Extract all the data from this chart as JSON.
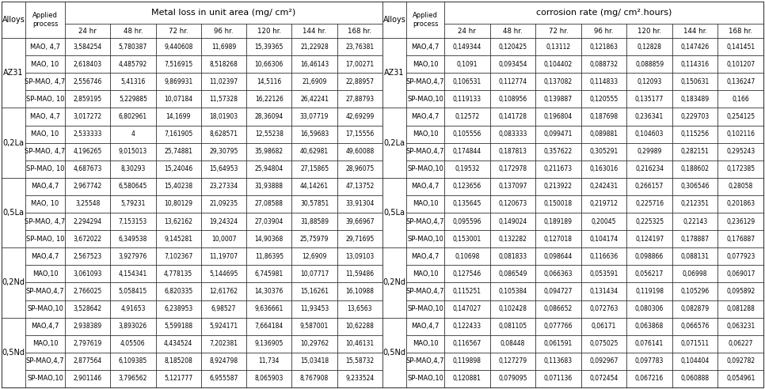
{
  "title_left": "Metal loss in unit area (mg/ cm²)",
  "title_right": "corrosion rate (mg/ cm².hours)",
  "col_headers": [
    "24 hr",
    "48 hr.",
    "72 hr.",
    "96 hr.",
    "120 hr.",
    "144 hr.",
    "168 hr."
  ],
  "alloys": [
    "AZ31",
    "0,2La",
    "0,5La",
    "0,2Nd",
    "0,5Nd"
  ],
  "processes_left": [
    "MAO, 4,7",
    "MAO, 10",
    "SP-MAO, 4,7",
    "SP-MAO, 10",
    "MAO, 4,7",
    "MAO, 10",
    "SP-MAO, 4,7",
    "SP-MAO, 10",
    "MAO,4,7",
    "MAO, 10",
    "SP-MAO, 4,7",
    "SP-MAO, 10",
    "MAO,4,7",
    "MAO,10",
    "SP-MAO,4,7",
    "SP-MAO,10",
    "MAO,4,7",
    "MAO,10",
    "SP-MAO,4,7",
    "SP-MAO,10"
  ],
  "processes_right": [
    "MAO,4,7",
    "MAO,10",
    "SP-MAO,4,7",
    "SP-MAO,10",
    "MAO,4,7",
    "MAO,10",
    "SP-MAO,4,7",
    "SP-MAO,10",
    "MAO,4,7",
    "MAO,10",
    "SP-MAO,4,7",
    "SP-MAO,10",
    "MAO,4,7",
    "MAO,10",
    "SP-MAO,4,7",
    "SP-MAO,10",
    "MAO,4,7",
    "MAO,10",
    "SP-MAO,4,7",
    "SP-MAO,10"
  ],
  "metal_loss": [
    [
      "3,584254",
      "5,780387",
      "9,440608",
      "11,6989",
      "15,39365",
      "21,22928",
      "23,76381"
    ],
    [
      "2,618403",
      "4,485792",
      "7,516915",
      "8,518268",
      "10,66306",
      "16,46143",
      "17,00271"
    ],
    [
      "2,556746",
      "5,41316",
      "9,869931",
      "11,02397",
      "14,5116",
      "21,6909",
      "22,88957"
    ],
    [
      "2,859195",
      "5,229885",
      "10,07184",
      "11,57328",
      "16,22126",
      "26,42241",
      "27,88793"
    ],
    [
      "3,017272",
      "6,802961",
      "14,1699",
      "18,01903",
      "28,36094",
      "33,07719",
      "42,69299"
    ],
    [
      "2,533333",
      "4",
      "7,161905",
      "8,628571",
      "12,55238",
      "16,59683",
      "17,15556"
    ],
    [
      "4,196265",
      "9,015013",
      "25,74881",
      "29,30795",
      "35,98682",
      "40,62981",
      "49,60088"
    ],
    [
      "4,687673",
      "8,30293",
      "15,24046",
      "15,64953",
      "25,94804",
      "27,15865",
      "28,96075"
    ],
    [
      "2,967742",
      "6,580645",
      "15,40238",
      "23,27334",
      "31,93888",
      "44,14261",
      "47,13752"
    ],
    [
      "3,25548",
      "5,79231",
      "10,80129",
      "21,09235",
      "27,08588",
      "30,57851",
      "33,91304"
    ],
    [
      "2,294294",
      "7,153153",
      "13,62162",
      "19,24324",
      "27,03904",
      "31,88589",
      "39,66967"
    ],
    [
      "3,672022",
      "6,349538",
      "9,145281",
      "10,0007",
      "14,90368",
      "25,75979",
      "29,71695"
    ],
    [
      "2,567523",
      "3,927976",
      "7,102367",
      "11,19707",
      "11,86395",
      "12,6909",
      "13,09103"
    ],
    [
      "3,061093",
      "4,154341",
      "4,778135",
      "5,144695",
      "6,745981",
      "10,07717",
      "11,59486"
    ],
    [
      "2,766025",
      "5,058415",
      "6,820335",
      "12,61762",
      "14,30376",
      "15,16261",
      "16,10988"
    ],
    [
      "3,528642",
      "4,91653",
      "6,238953",
      "6,98527",
      "9,636661",
      "11,93453",
      "13,6563"
    ],
    [
      "2,938389",
      "3,893026",
      "5,599188",
      "5,924171",
      "7,664184",
      "9,587001",
      "10,62288"
    ],
    [
      "2,797619",
      "4,05506",
      "4,434524",
      "7,202381",
      "9,136905",
      "10,29762",
      "10,46131"
    ],
    [
      "2,877564",
      "6,109385",
      "8,185208",
      "8,924798",
      "11,734",
      "15,03418",
      "15,58732"
    ],
    [
      "2,901146",
      "3,796562",
      "5,121777",
      "6,955587",
      "8,065903",
      "8,767908",
      "9,233524"
    ]
  ],
  "corrosion_rate": [
    [
      "0,149344",
      "0,120425",
      "0,13112",
      "0,121863",
      "0,12828",
      "0,147426",
      "0,141451"
    ],
    [
      "0,1091",
      "0,093454",
      "0,104402",
      "0,088732",
      "0,088859",
      "0,114316",
      "0,101207"
    ],
    [
      "0,106531",
      "0,112774",
      "0,137082",
      "0,114833",
      "0,12093",
      "0,150631",
      "0,136247"
    ],
    [
      "0,119133",
      "0,108956",
      "0,139887",
      "0,120555",
      "0,135177",
      "0,183489",
      "0,166"
    ],
    [
      "0,12572",
      "0,141728",
      "0,196804",
      "0,187698",
      "0,236341",
      "0,229703",
      "0,254125"
    ],
    [
      "0,105556",
      "0,083333",
      "0,099471",
      "0,089881",
      "0,104603",
      "0,115256",
      "0,102116"
    ],
    [
      "0,174844",
      "0,187813",
      "0,357622",
      "0,305291",
      "0,29989",
      "0,282151",
      "0,295243"
    ],
    [
      "0,19532",
      "0,172978",
      "0,211673",
      "0,163016",
      "0,216234",
      "0,188602",
      "0,172385"
    ],
    [
      "0,123656",
      "0,137097",
      "0,213922",
      "0,242431",
      "0,266157",
      "0,306546",
      "0,28058"
    ],
    [
      "0,135645",
      "0,120673",
      "0,150018",
      "0,219712",
      "0,225716",
      "0,212351",
      "0,201863"
    ],
    [
      "0,095596",
      "0,149024",
      "0,189189",
      "0,20045",
      "0,225325",
      "0,22143",
      "0,236129"
    ],
    [
      "0,153001",
      "0,132282",
      "0,127018",
      "0,104174",
      "0,124197",
      "0,178887",
      "0,176887"
    ],
    [
      "0,10698",
      "0,081833",
      "0,098644",
      "0,116636",
      "0,098866",
      "0,088131",
      "0,077923"
    ],
    [
      "0,127546",
      "0,086549",
      "0,066363",
      "0,053591",
      "0,056217",
      "0,06998",
      "0,069017"
    ],
    [
      "0,115251",
      "0,105384",
      "0,094727",
      "0,131434",
      "0,119198",
      "0,105296",
      "0,095892"
    ],
    [
      "0,147027",
      "0,102428",
      "0,086652",
      "0,072763",
      "0,080306",
      "0,082879",
      "0,081288"
    ],
    [
      "0,122433",
      "0,081105",
      "0,077766",
      "0,06171",
      "0,063868",
      "0,066576",
      "0,063231"
    ],
    [
      "0,116567",
      "0,08448",
      "0,061591",
      "0,075025",
      "0,076141",
      "0,071511",
      "0,06227"
    ],
    [
      "0,119898",
      "0,127279",
      "0,113683",
      "0,092967",
      "0,097783",
      "0,104404",
      "0,092782"
    ],
    [
      "0,120881",
      "0,079095",
      "0,071136",
      "0,072454",
      "0,067216",
      "0,060888",
      "0,054961"
    ]
  ],
  "font_size": 5.5,
  "header_font_size": 8.0,
  "subheader_font_size": 6.2,
  "alloy_font_size": 7.0,
  "proc_font_size": 6.0
}
